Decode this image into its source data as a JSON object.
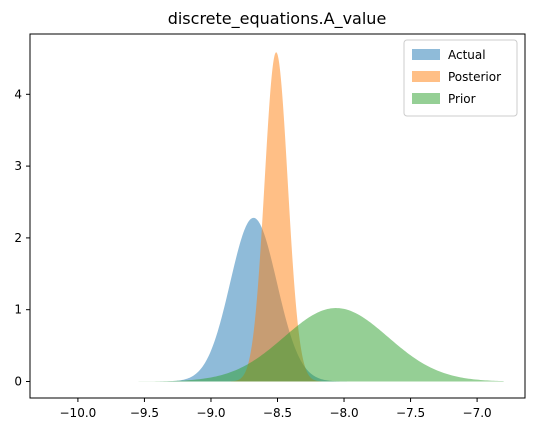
{
  "chart_data": {
    "type": "area",
    "title": "discrete_equations.A_value",
    "xlabel": "",
    "ylabel": "",
    "xlim": [
      -10.36,
      -6.64
    ],
    "ylim": [
      -0.23,
      4.84
    ],
    "xticks": [
      -10.0,
      -9.5,
      -9.0,
      -8.5,
      -8.0,
      -7.5,
      -7.0
    ],
    "xtick_labels": [
      "−10.0",
      "−9.5",
      "−9.0",
      "−8.5",
      "−8.0",
      "−7.5",
      "−7.0"
    ],
    "yticks": [
      0,
      1,
      2,
      3,
      4
    ],
    "ytick_labels": [
      "0",
      "1",
      "2",
      "3",
      "4"
    ],
    "grid": false,
    "legend_position": "top-right",
    "series": [
      {
        "name": "Actual",
        "color": "#1f77b4",
        "opacity": 0.5,
        "mean": -8.68,
        "sd": 0.175,
        "x_range": [
          -9.4,
          -7.9
        ]
      },
      {
        "name": "Posterior",
        "color": "#ff7f0e",
        "opacity": 0.5,
        "mean": -8.51,
        "sd": 0.087,
        "x_range": [
          -8.85,
          -8.17
        ]
      },
      {
        "name": "Prior",
        "color": "#2ca02c",
        "opacity": 0.5,
        "mean": -8.06,
        "sd": 0.39,
        "x_range": [
          -9.8,
          -6.8
        ]
      }
    ]
  }
}
